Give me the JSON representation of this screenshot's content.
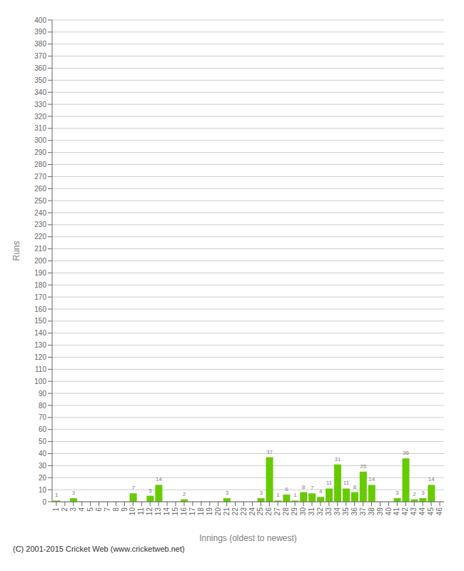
{
  "chart_data": {
    "type": "bar",
    "categories": [
      "1",
      "2",
      "3",
      "4",
      "5",
      "6",
      "7",
      "8",
      "9",
      "10",
      "11",
      "12",
      "13",
      "14",
      "15",
      "16",
      "17",
      "18",
      "19",
      "20",
      "21",
      "22",
      "23",
      "24",
      "25",
      "26",
      "27",
      "28",
      "29",
      "30",
      "31",
      "32",
      "33",
      "34",
      "35",
      "36",
      "37",
      "38",
      "39",
      "40",
      "41",
      "42",
      "43",
      "44",
      "45",
      "46"
    ],
    "values": [
      1,
      0,
      3,
      0,
      0,
      0,
      0,
      0,
      0,
      7,
      0,
      5,
      14,
      0,
      0,
      2,
      0,
      0,
      0,
      0,
      3,
      0,
      0,
      0,
      3,
      37,
      1,
      6,
      1,
      8,
      7,
      4,
      11,
      31,
      11,
      8,
      25,
      14,
      0,
      0,
      3,
      36,
      2,
      3,
      14,
      0
    ],
    "color": "#66cc00",
    "x_label": "Innings (oldest to newest)",
    "y_label": "Runs",
    "ylim": [
      0,
      400
    ],
    "yticks": [
      0,
      10,
      20,
      30,
      40,
      50,
      60,
      70,
      80,
      90,
      100,
      110,
      120,
      130,
      140,
      150,
      160,
      170,
      180,
      190,
      200,
      210,
      220,
      230,
      240,
      250,
      260,
      270,
      280,
      290,
      300,
      310,
      320,
      330,
      340,
      350,
      360,
      370,
      380,
      390,
      400
    ],
    "grid": true,
    "data_labels": true,
    "annotations": [
      "(C) 2001-2015 Cricket Web (www.cricketweb.net)"
    ]
  }
}
